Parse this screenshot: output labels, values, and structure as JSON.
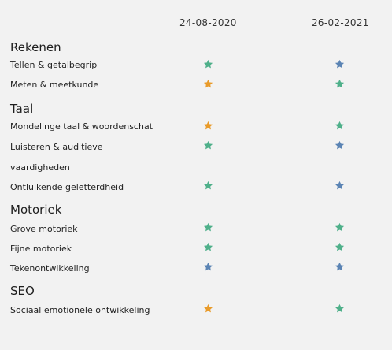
{
  "columns": [
    "24-08-2020",
    "26-02-2021"
  ],
  "colors": {
    "green": "#4fb08a",
    "blue": "#5b84b4",
    "orange": "#e99b2a"
  },
  "sections": [
    {
      "title": "Rekenen",
      "rows": [
        {
          "label": "Tellen & getalbegrip",
          "stars": [
            "green",
            "blue"
          ]
        },
        {
          "label": "Meten & meetkunde",
          "stars": [
            "orange",
            "green"
          ]
        }
      ]
    },
    {
      "title": "Taal",
      "rows": [
        {
          "label": "Mondelinge taal & woordenschat",
          "stars": [
            "orange",
            "green"
          ]
        },
        {
          "label": "Luisteren & auditieve",
          "label2": "vaardigheden",
          "stars": [
            "green",
            "blue"
          ]
        },
        {
          "label": "Ontluikende geletterdheid",
          "stars": [
            "green",
            "blue"
          ]
        }
      ]
    },
    {
      "title": "Motoriek",
      "rows": [
        {
          "label": "Grove motoriek",
          "stars": [
            "green",
            "green"
          ]
        },
        {
          "label": "Fijne motoriek",
          "stars": [
            "green",
            "green"
          ]
        },
        {
          "label": "Tekenontwikkeling",
          "stars": [
            "blue",
            "blue"
          ]
        }
      ]
    },
    {
      "title": "SEO",
      "rows": [
        {
          "label": "Sociaal emotionele ontwikkeling",
          "stars": [
            "orange",
            "green"
          ]
        }
      ]
    }
  ]
}
